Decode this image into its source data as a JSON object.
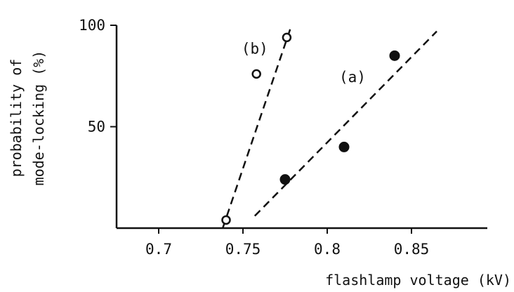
{
  "chart_data": {
    "type": "scatter",
    "title": "",
    "xlabel": "flashlamp voltage (kV)",
    "ylabel_lines": [
      "probability of",
      "mode-locking (%)"
    ],
    "xlim": [
      0.675,
      0.895
    ],
    "ylim": [
      0,
      100
    ],
    "x_ticks": [
      {
        "value": 0.7,
        "label": "0.7"
      },
      {
        "value": 0.75,
        "label": "0.75"
      },
      {
        "value": 0.8,
        "label": "0.8"
      },
      {
        "value": 0.85,
        "label": "0.85"
      }
    ],
    "y_ticks": [
      {
        "value": 50,
        "label": "50"
      },
      {
        "value": 100,
        "label": "100"
      }
    ],
    "grid": false,
    "legend": "none",
    "series": [
      {
        "name": "(a)",
        "marker": "filled-circle",
        "points": [
          [
            0.775,
            24
          ],
          [
            0.81,
            40
          ],
          [
            0.84,
            85
          ]
        ],
        "fit_line": [
          [
            0.757,
            6
          ],
          [
            0.865,
            97
          ]
        ]
      },
      {
        "name": "(b)",
        "marker": "open-circle",
        "points": [
          [
            0.74,
            4
          ],
          [
            0.758,
            76
          ],
          [
            0.776,
            94
          ]
        ],
        "fit_line": [
          [
            0.738,
            0
          ],
          [
            0.778,
            98
          ]
        ]
      }
    ]
  }
}
